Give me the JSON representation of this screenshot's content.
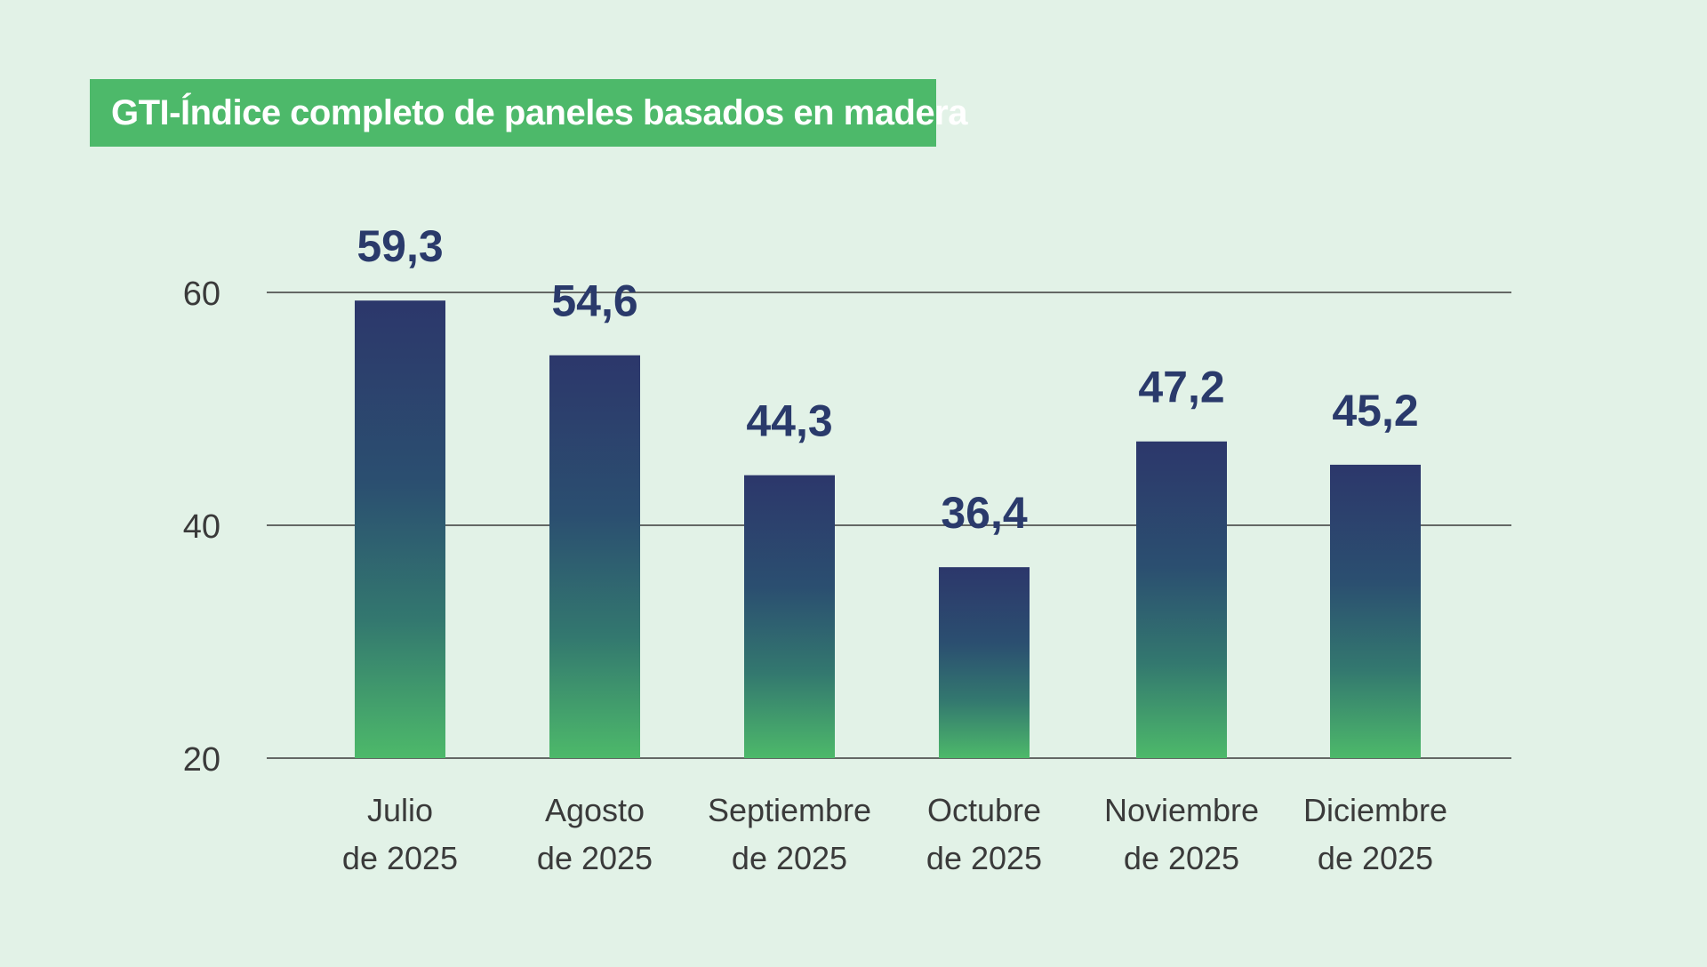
{
  "chart_data": {
    "type": "bar",
    "title": "GTI-Índice completo de paneles basados en madera",
    "categories": [
      [
        "Julio",
        "de 2025"
      ],
      [
        "Agosto",
        "de 2025"
      ],
      [
        "Septiembre",
        "de 2025"
      ],
      [
        "Octubre",
        "de 2025"
      ],
      [
        "Noviembre",
        "de 2025"
      ],
      [
        "Diciembre",
        "de 2025"
      ]
    ],
    "values": [
      59.3,
      54.6,
      44.3,
      36.4,
      47.2,
      45.2
    ],
    "value_labels": [
      "59,3",
      "54,6",
      "44,3",
      "36,4",
      "47,2",
      "45,2"
    ],
    "y_ticks": [
      20,
      40,
      60
    ],
    "ylim": [
      20,
      60
    ],
    "xlabel": "",
    "ylabel": "",
    "grid": true,
    "colors": {
      "bar_top": "#2c376b",
      "bar_bottom": "#4db96a",
      "title_bg": "#4db96a",
      "value_text": "#2a3a6b",
      "background": "#e2f2e7"
    }
  }
}
